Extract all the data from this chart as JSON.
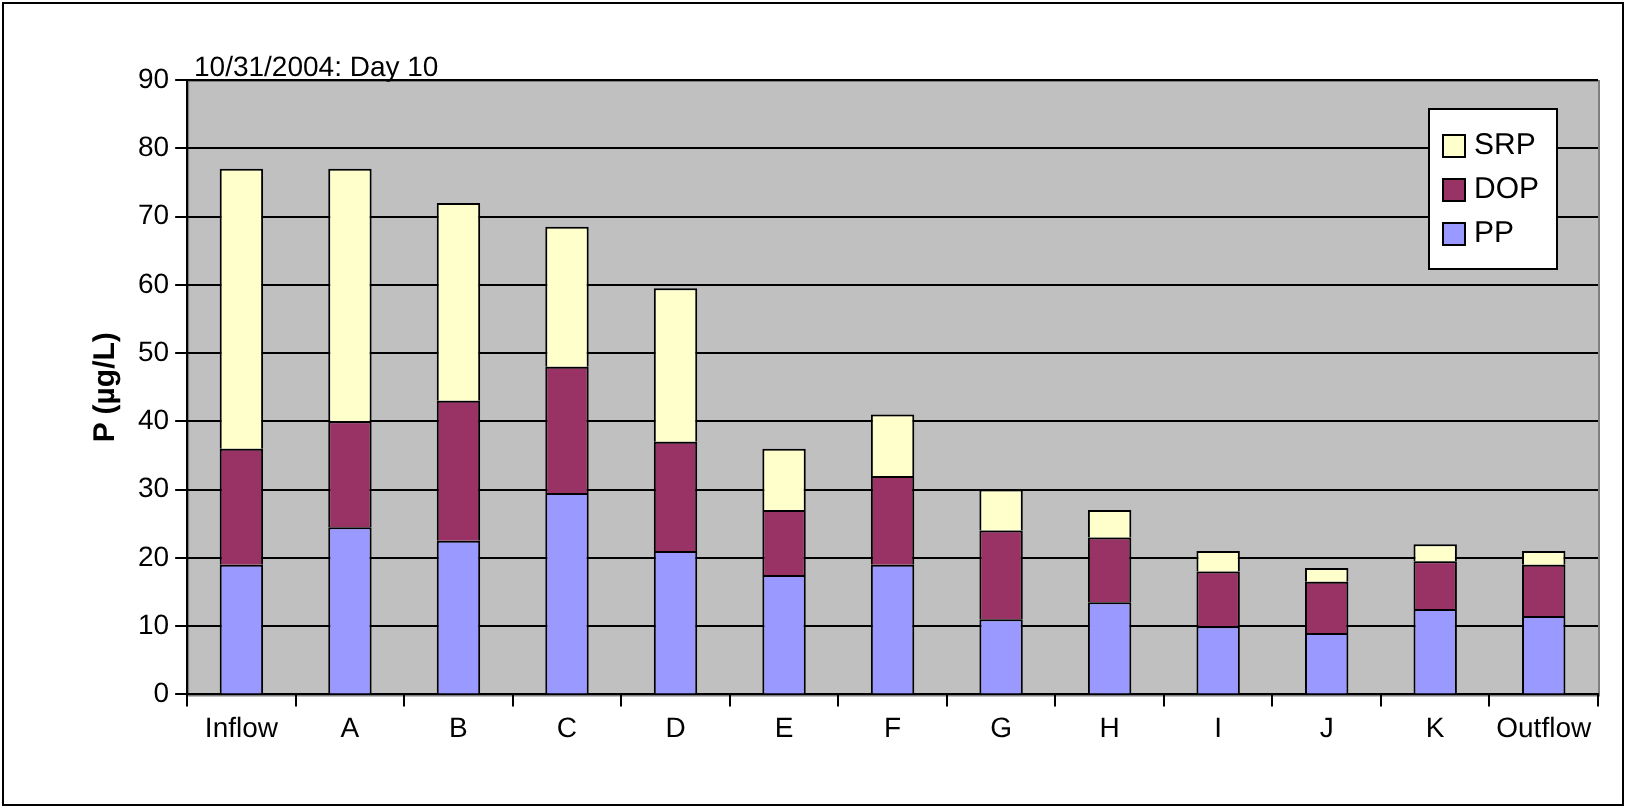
{
  "chart_data": {
    "type": "bar",
    "title": "10/31/2004: Day 10",
    "ylabel": "P (µg/L)",
    "categories": [
      "Inflow",
      "A",
      "B",
      "C",
      "D",
      "E",
      "F",
      "G",
      "H",
      "I",
      "J",
      "K",
      "Outflow"
    ],
    "stacked": true,
    "series": [
      {
        "name": "PP",
        "color": "#9999ff",
        "values": [
          19,
          24.5,
          22.5,
          29.5,
          21,
          17.5,
          19,
          11,
          13.5,
          10,
          9,
          12.5,
          11.5
        ]
      },
      {
        "name": "DOP",
        "color": "#993366",
        "values": [
          17,
          15.5,
          20.5,
          18.5,
          16,
          9.5,
          13,
          13,
          9.5,
          8,
          7.5,
          7,
          7.5
        ]
      },
      {
        "name": "SRP",
        "color": "#ffffcc",
        "values": [
          41,
          37,
          29,
          20.5,
          22.5,
          9,
          9,
          6,
          4,
          3,
          2,
          2.5,
          2
        ]
      }
    ],
    "ylim": [
      0,
      90
    ],
    "yticks": [
      0,
      10,
      20,
      30,
      40,
      50,
      60,
      70,
      80,
      90
    ],
    "grid": "y",
    "legend": "top right"
  }
}
